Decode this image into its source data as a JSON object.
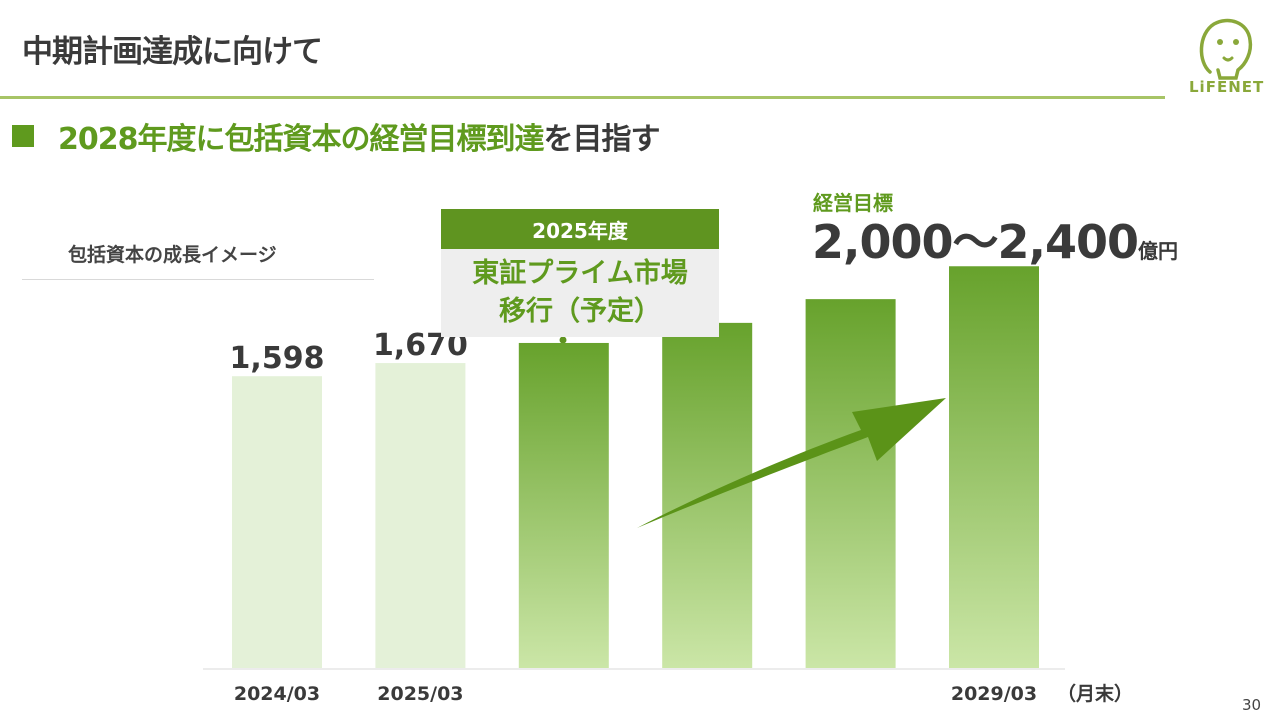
{
  "header": {
    "title": "中期計画達成に向けて",
    "logo_text": "LiFENET"
  },
  "subtitle": {
    "green_text": "2028年度に包括資本の経営目標到達",
    "dark_text": "を目指す"
  },
  "callout": {
    "header": "2025年度",
    "line1": "東証プライム市場",
    "line2": "移行（予定）"
  },
  "target": {
    "label": "経営目標",
    "value": "2,000～2,400",
    "unit": "億円"
  },
  "page_number": "30",
  "colors": {
    "accent_green": "#5f9a1e",
    "light_bar": "#e4f1d8",
    "projection_top": "#67a22c",
    "projection_bottom": "#cbe6a7",
    "arrow": "#5b9318",
    "rule": "#a7c466"
  },
  "chart_data": {
    "type": "bar",
    "title": "包括資本の成長イメージ",
    "categories": [
      "2024/03",
      "2025/03",
      "",
      "",
      "",
      "2029/03"
    ],
    "values": [
      1598,
      1670,
      1780,
      1890,
      2020,
      2200
    ],
    "value_labels": [
      "1,598",
      "1,670",
      "",
      "",
      "",
      ""
    ],
    "x_unit_label": "（月末）",
    "ylim": [
      0,
      2300
    ],
    "grid": false,
    "legend": "none",
    "annotations": [
      "2025年度 東証プライム市場移行（予定）",
      "経営目標 2,000～2,400億円"
    ]
  }
}
